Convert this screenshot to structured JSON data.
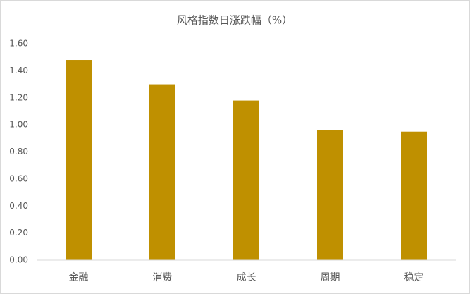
{
  "chart_data": {
    "type": "bar",
    "title": "风格指数日涨跌幅（%）",
    "categories": [
      "金融",
      "消费",
      "成长",
      "周期",
      "稳定"
    ],
    "values": [
      1.48,
      1.3,
      1.18,
      0.96,
      0.95
    ],
    "color": "#bf9000",
    "ylim": [
      0,
      1.6
    ],
    "yticks": [
      {
        "value": 0,
        "label": "0.00"
      },
      {
        "value": 0.2,
        "label": "0.20"
      },
      {
        "value": 0.4,
        "label": "0.40"
      },
      {
        "value": 0.6,
        "label": "0.60"
      },
      {
        "value": 0.8,
        "label": "0.80"
      },
      {
        "value": 1.0,
        "label": "1.00"
      },
      {
        "value": 1.2,
        "label": "1.20"
      },
      {
        "value": 1.4,
        "label": "1.40"
      },
      {
        "value": 1.6,
        "label": "1.60"
      }
    ],
    "grid": false
  }
}
